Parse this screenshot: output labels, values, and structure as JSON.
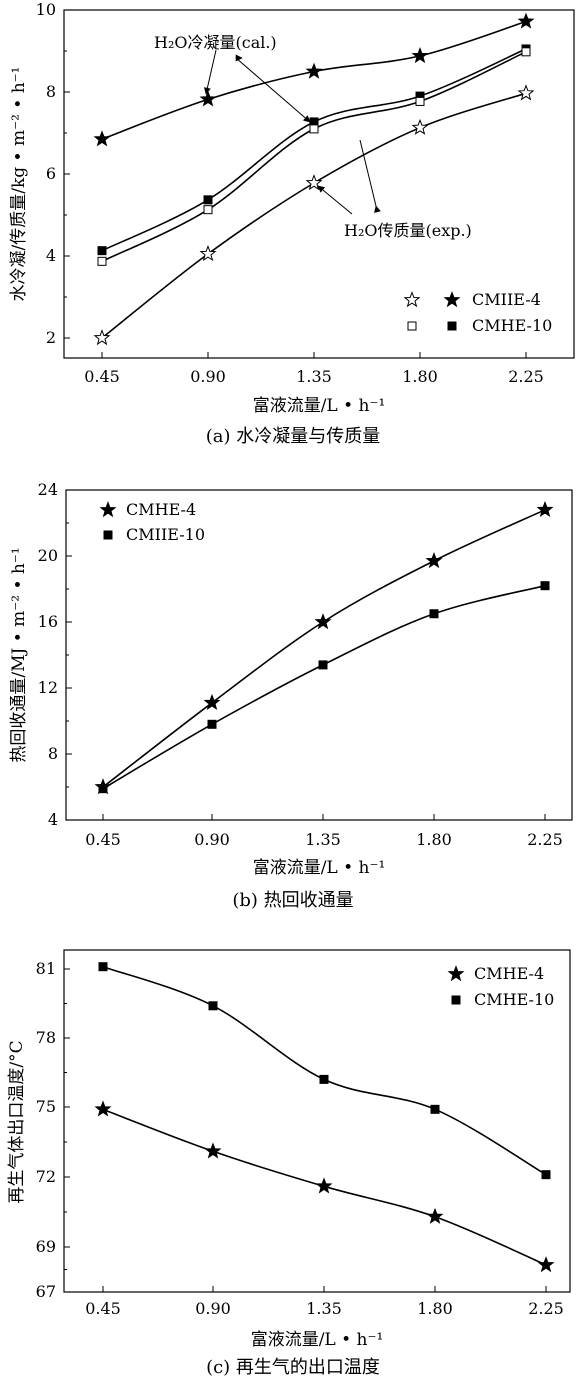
{
  "chart_data": [
    {
      "type": "line",
      "caption": "(a) 水冷凝量与传质量",
      "xlabel": "富液流量/L • h⁻¹",
      "ylabel": "水冷凝/传质量/kg • m⁻² • h⁻¹",
      "categories": [
        "0.45",
        "0.90",
        "1.35",
        "1.80",
        "2.25"
      ],
      "x": [
        0.45,
        0.9,
        1.35,
        1.8,
        2.25
      ],
      "yticks": [
        "2",
        "4",
        "6",
        "8",
        "10"
      ],
      "ylim": [
        1.5,
        10
      ],
      "annotations": [
        "H₂O冷凝量(cal.)",
        "H₂O传质量(exp.)"
      ],
      "legend": {
        "position": "bottom-right",
        "entries": [
          "CMIIE-4",
          "CMHE-10"
        ]
      },
      "series": [
        {
          "group": "CMHE-4",
          "kind": "cal.",
          "marker": "star-filled",
          "values": [
            6.85,
            7.82,
            8.5,
            8.88,
            9.72
          ]
        },
        {
          "group": "CMHE-4",
          "kind": "exp.",
          "marker": "star-open",
          "values": [
            2.0,
            4.05,
            5.78,
            7.13,
            7.97
          ]
        },
        {
          "group": "CMHE-10",
          "kind": "cal.",
          "marker": "square-filled",
          "values": [
            4.13,
            5.37,
            7.27,
            7.9,
            9.05
          ]
        },
        {
          "group": "CMHE-10",
          "kind": "exp.",
          "marker": "square-open",
          "values": [
            3.87,
            5.13,
            7.1,
            7.77,
            8.98
          ]
        }
      ]
    },
    {
      "type": "line",
      "caption": "(b) 热回收通量",
      "xlabel": "富液流量/L • h⁻¹",
      "ylabel": "热回收通量/MJ • m⁻² • h⁻¹",
      "categories": [
        "0.45",
        "0.90",
        "1.35",
        "1.80",
        "2.25"
      ],
      "x": [
        0.45,
        0.9,
        1.35,
        1.8,
        2.25
      ],
      "yticks": [
        "4",
        "8",
        "12",
        "16",
        "20",
        "24"
      ],
      "ylim": [
        4,
        24
      ],
      "legend": {
        "position": "top-left",
        "entries": [
          "CMHE-4",
          "CMIIE-10"
        ]
      },
      "series": [
        {
          "name": "CMHE-4",
          "marker": "star-filled",
          "values": [
            6.0,
            11.1,
            16.0,
            19.7,
            22.8
          ]
        },
        {
          "name": "CMIIE-10",
          "marker": "square-filled",
          "values": [
            5.9,
            9.8,
            13.4,
            16.5,
            18.2
          ]
        }
      ]
    },
    {
      "type": "line",
      "caption": "(c) 再生气的出口温度",
      "xlabel": "富液流量/L • h⁻¹",
      "ylabel": "再生气体出口温度/°C",
      "categories": [
        "0.45",
        "0.90",
        "1.35",
        "1.80",
        "2.25"
      ],
      "x": [
        0.45,
        0.9,
        1.35,
        1.8,
        2.25
      ],
      "yticks": [
        "67",
        "69",
        "72",
        "75",
        "78",
        "81"
      ],
      "ylim": [
        67,
        82
      ],
      "legend": {
        "position": "top-right",
        "entries": [
          "CMHE-4",
          "CMHE-10"
        ]
      },
      "series": [
        {
          "name": "CMHE-4",
          "marker": "star-filled",
          "values": [
            74.9,
            73.1,
            71.6,
            70.3,
            68.2
          ]
        },
        {
          "name": "CMHE-10",
          "marker": "square-filled",
          "values": [
            81.1,
            79.4,
            76.2,
            74.9,
            72.1
          ]
        }
      ]
    }
  ]
}
